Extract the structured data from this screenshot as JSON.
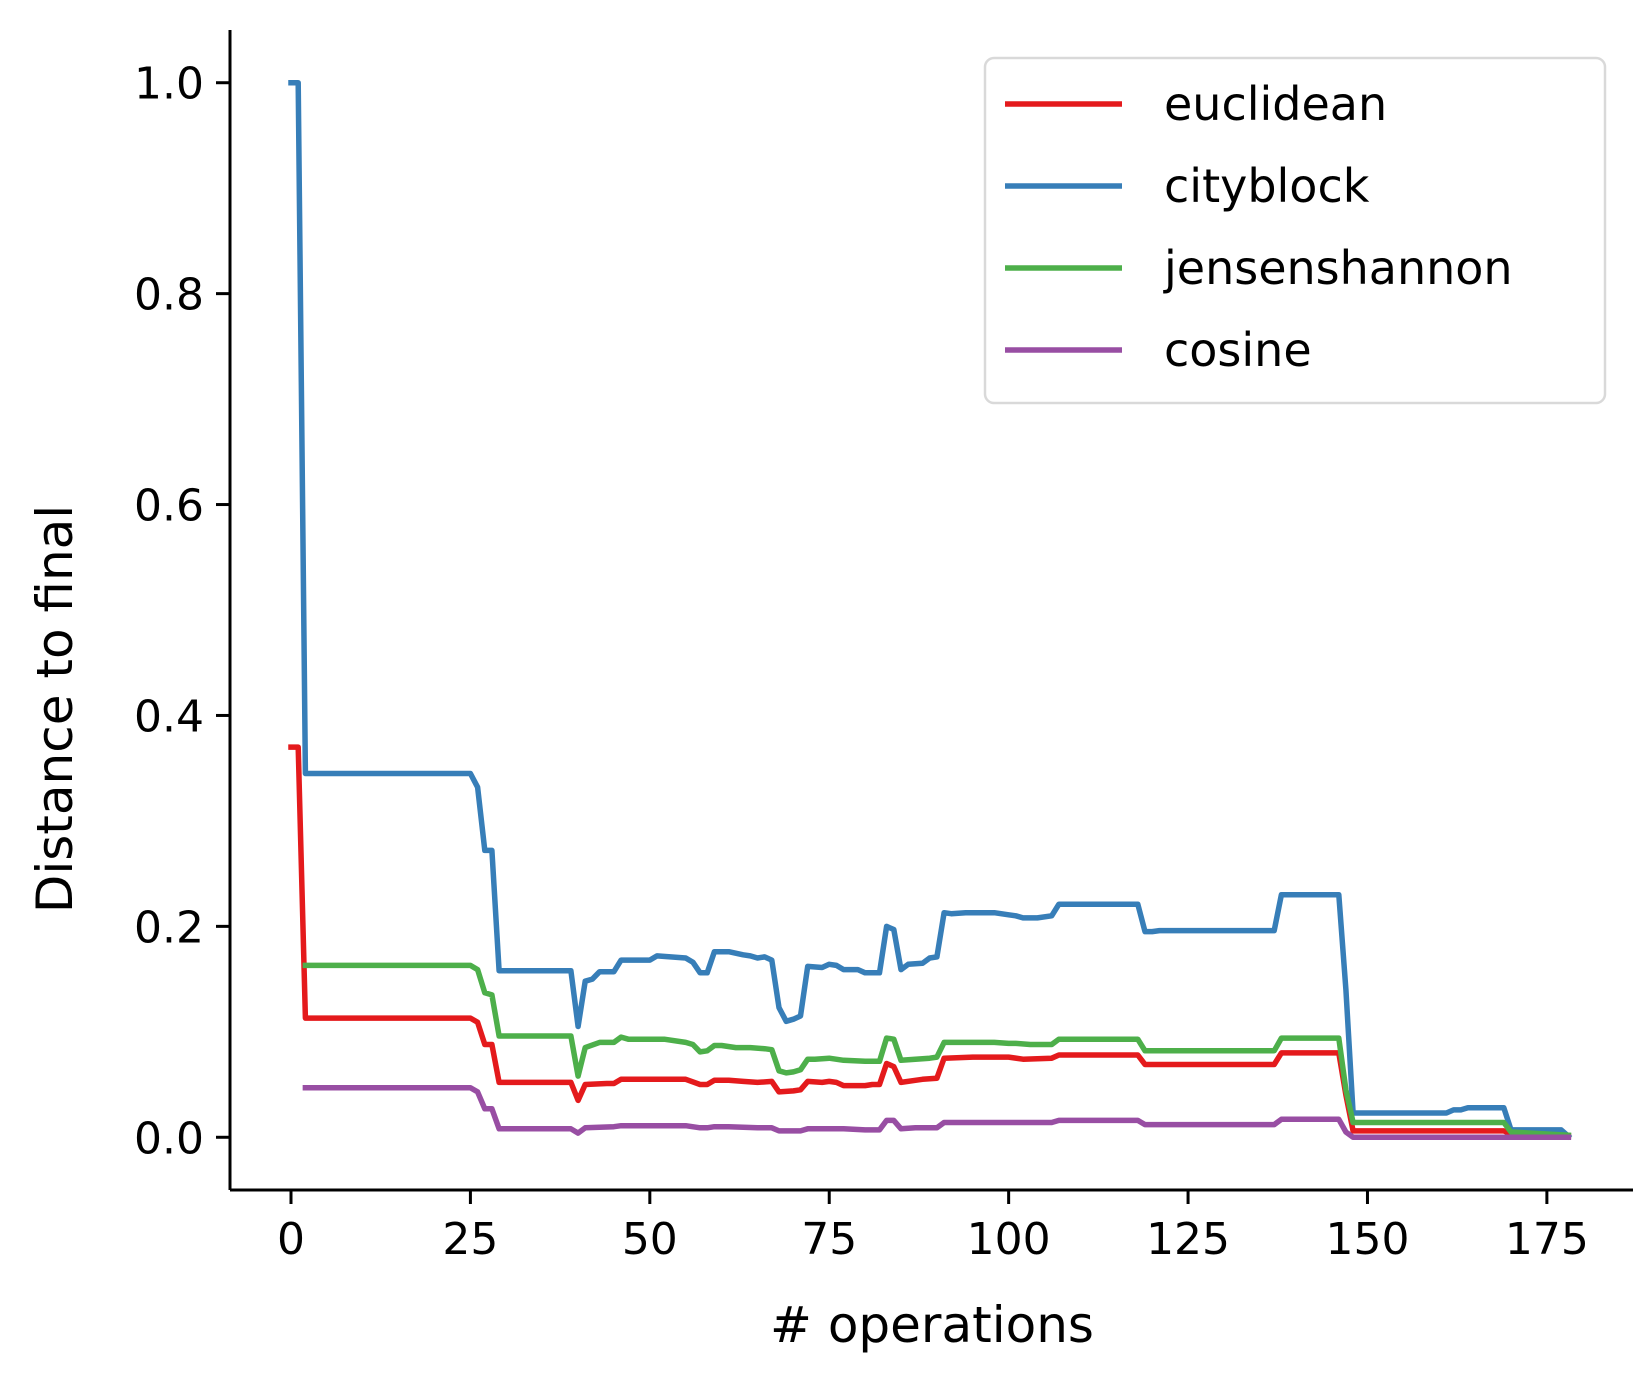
{
  "chart_data": {
    "type": "line",
    "title": "",
    "xlabel": "# operations",
    "ylabel": "Distance to final",
    "xlim": [
      -8.5,
      187
    ],
    "ylim": [
      -0.05,
      1.05
    ],
    "x_ticks": [
      0,
      25,
      50,
      75,
      100,
      125,
      150,
      175
    ],
    "x_tick_labels": [
      "0",
      "25",
      "50",
      "75",
      "100",
      "125",
      "150",
      "175"
    ],
    "y_ticks": [
      0.0,
      0.2,
      0.4,
      0.6,
      0.8,
      1.0
    ],
    "y_tick_labels": [
      "0.0",
      "0.2",
      "0.4",
      "0.6",
      "0.8",
      "1.0"
    ],
    "grid": false,
    "legend_position": "top-right",
    "series": [
      {
        "name": "euclidean",
        "color": "#e41a1c",
        "points": [
          [
            0,
            0.37
          ],
          [
            1,
            0.37
          ],
          [
            2,
            0.113
          ],
          [
            24,
            0.113
          ],
          [
            25,
            0.113
          ],
          [
            26,
            0.109
          ],
          [
            27,
            0.088
          ],
          [
            28,
            0.088
          ],
          [
            29,
            0.052
          ],
          [
            39,
            0.052
          ],
          [
            40,
            0.035
          ],
          [
            41,
            0.05
          ],
          [
            44,
            0.051
          ],
          [
            45,
            0.051
          ],
          [
            46,
            0.055
          ],
          [
            55,
            0.055
          ],
          [
            57,
            0.05
          ],
          [
            58,
            0.05
          ],
          [
            59,
            0.054
          ],
          [
            61,
            0.054
          ],
          [
            63,
            0.053
          ],
          [
            65,
            0.052
          ],
          [
            67,
            0.053
          ],
          [
            68,
            0.043
          ],
          [
            70,
            0.044
          ],
          [
            71,
            0.045
          ],
          [
            72,
            0.053
          ],
          [
            74,
            0.052
          ],
          [
            75,
            0.053
          ],
          [
            76,
            0.052
          ],
          [
            77,
            0.049
          ],
          [
            80,
            0.049
          ],
          [
            81,
            0.05
          ],
          [
            82,
            0.05
          ],
          [
            83,
            0.07
          ],
          [
            84,
            0.067
          ],
          [
            85,
            0.052
          ],
          [
            87,
            0.054
          ],
          [
            88,
            0.055
          ],
          [
            90,
            0.056
          ],
          [
            91,
            0.075
          ],
          [
            95,
            0.076
          ],
          [
            100,
            0.076
          ],
          [
            102,
            0.074
          ],
          [
            106,
            0.075
          ],
          [
            107,
            0.078
          ],
          [
            118,
            0.078
          ],
          [
            119,
            0.069
          ],
          [
            137,
            0.069
          ],
          [
            138,
            0.08
          ],
          [
            146,
            0.08
          ],
          [
            147,
            0.04
          ],
          [
            148,
            0.006
          ],
          [
            169,
            0.006
          ],
          [
            170,
            0.003
          ],
          [
            178,
            0.001
          ]
        ]
      },
      {
        "name": "cityblock",
        "color": "#377eb8",
        "points": [
          [
            0,
            1.0
          ],
          [
            1,
            1.0
          ],
          [
            2,
            0.345
          ],
          [
            24,
            0.345
          ],
          [
            25,
            0.345
          ],
          [
            26,
            0.332
          ],
          [
            27,
            0.272
          ],
          [
            28,
            0.272
          ],
          [
            29,
            0.158
          ],
          [
            39,
            0.158
          ],
          [
            40,
            0.105
          ],
          [
            41,
            0.148
          ],
          [
            42,
            0.15
          ],
          [
            43,
            0.157
          ],
          [
            45,
            0.157
          ],
          [
            46,
            0.168
          ],
          [
            50,
            0.168
          ],
          [
            51,
            0.172
          ],
          [
            55,
            0.17
          ],
          [
            56,
            0.166
          ],
          [
            57,
            0.156
          ],
          [
            58,
            0.156
          ],
          [
            59,
            0.176
          ],
          [
            61,
            0.176
          ],
          [
            63,
            0.173
          ],
          [
            64,
            0.172
          ],
          [
            65,
            0.17
          ],
          [
            66,
            0.171
          ],
          [
            67,
            0.168
          ],
          [
            68,
            0.123
          ],
          [
            69,
            0.11
          ],
          [
            70,
            0.112
          ],
          [
            71,
            0.115
          ],
          [
            72,
            0.162
          ],
          [
            74,
            0.161
          ],
          [
            75,
            0.164
          ],
          [
            76,
            0.163
          ],
          [
            77,
            0.159
          ],
          [
            79,
            0.159
          ],
          [
            80,
            0.156
          ],
          [
            82,
            0.156
          ],
          [
            83,
            0.2
          ],
          [
            84,
            0.197
          ],
          [
            85,
            0.159
          ],
          [
            86,
            0.164
          ],
          [
            88,
            0.165
          ],
          [
            89,
            0.17
          ],
          [
            90,
            0.171
          ],
          [
            91,
            0.213
          ],
          [
            92,
            0.212
          ],
          [
            94,
            0.213
          ],
          [
            98,
            0.213
          ],
          [
            100,
            0.211
          ],
          [
            101,
            0.21
          ],
          [
            102,
            0.208
          ],
          [
            104,
            0.208
          ],
          [
            106,
            0.21
          ],
          [
            107,
            0.221
          ],
          [
            118,
            0.221
          ],
          [
            119,
            0.195
          ],
          [
            120,
            0.195
          ],
          [
            121,
            0.196
          ],
          [
            137,
            0.196
          ],
          [
            138,
            0.23
          ],
          [
            146,
            0.23
          ],
          [
            147,
            0.14
          ],
          [
            148,
            0.023
          ],
          [
            161,
            0.023
          ],
          [
            162,
            0.026
          ],
          [
            163,
            0.026
          ],
          [
            164,
            0.028
          ],
          [
            168,
            0.028
          ],
          [
            169,
            0.028
          ],
          [
            170,
            0.007
          ],
          [
            177,
            0.007
          ],
          [
            178,
            0.001
          ]
        ]
      },
      {
        "name": "jensenshannon",
        "color": "#4daf4a",
        "points": [
          [
            2,
            0.163
          ],
          [
            24,
            0.163
          ],
          [
            25,
            0.163
          ],
          [
            26,
            0.159
          ],
          [
            27,
            0.137
          ],
          [
            28,
            0.135
          ],
          [
            29,
            0.096
          ],
          [
            39,
            0.096
          ],
          [
            40,
            0.058
          ],
          [
            41,
            0.085
          ],
          [
            43,
            0.09
          ],
          [
            45,
            0.09
          ],
          [
            46,
            0.095
          ],
          [
            47,
            0.093
          ],
          [
            52,
            0.093
          ],
          [
            55,
            0.09
          ],
          [
            56,
            0.088
          ],
          [
            57,
            0.081
          ],
          [
            58,
            0.082
          ],
          [
            59,
            0.087
          ],
          [
            60,
            0.087
          ],
          [
            62,
            0.085
          ],
          [
            64,
            0.085
          ],
          [
            66,
            0.084
          ],
          [
            67,
            0.083
          ],
          [
            68,
            0.063
          ],
          [
            69,
            0.061
          ],
          [
            70,
            0.062
          ],
          [
            71,
            0.064
          ],
          [
            72,
            0.074
          ],
          [
            73,
            0.074
          ],
          [
            75,
            0.075
          ],
          [
            77,
            0.073
          ],
          [
            80,
            0.072
          ],
          [
            82,
            0.072
          ],
          [
            83,
            0.094
          ],
          [
            84,
            0.093
          ],
          [
            85,
            0.073
          ],
          [
            87,
            0.074
          ],
          [
            89,
            0.075
          ],
          [
            90,
            0.076
          ],
          [
            91,
            0.09
          ],
          [
            98,
            0.09
          ],
          [
            100,
            0.089
          ],
          [
            101,
            0.089
          ],
          [
            103,
            0.088
          ],
          [
            106,
            0.088
          ],
          [
            107,
            0.093
          ],
          [
            118,
            0.093
          ],
          [
            119,
            0.082
          ],
          [
            137,
            0.082
          ],
          [
            138,
            0.094
          ],
          [
            146,
            0.094
          ],
          [
            147,
            0.045
          ],
          [
            148,
            0.014
          ],
          [
            169,
            0.014
          ],
          [
            170,
            0.005
          ],
          [
            178,
            0.002
          ]
        ]
      },
      {
        "name": "cosine",
        "color": "#984ea3",
        "points": [
          [
            2,
            0.047
          ],
          [
            24,
            0.047
          ],
          [
            25,
            0.047
          ],
          [
            26,
            0.043
          ],
          [
            27,
            0.027
          ],
          [
            28,
            0.027
          ],
          [
            29,
            0.008
          ],
          [
            39,
            0.008
          ],
          [
            40,
            0.004
          ],
          [
            41,
            0.009
          ],
          [
            45,
            0.01
          ],
          [
            46,
            0.011
          ],
          [
            55,
            0.011
          ],
          [
            57,
            0.009
          ],
          [
            58,
            0.009
          ],
          [
            59,
            0.01
          ],
          [
            61,
            0.01
          ],
          [
            65,
            0.009
          ],
          [
            67,
            0.009
          ],
          [
            68,
            0.006
          ],
          [
            71,
            0.006
          ],
          [
            72,
            0.008
          ],
          [
            77,
            0.008
          ],
          [
            80,
            0.007
          ],
          [
            82,
            0.007
          ],
          [
            83,
            0.016
          ],
          [
            84,
            0.016
          ],
          [
            85,
            0.008
          ],
          [
            87,
            0.009
          ],
          [
            90,
            0.009
          ],
          [
            91,
            0.014
          ],
          [
            100,
            0.014
          ],
          [
            102,
            0.014
          ],
          [
            106,
            0.014
          ],
          [
            107,
            0.016
          ],
          [
            118,
            0.016
          ],
          [
            119,
            0.012
          ],
          [
            137,
            0.012
          ],
          [
            138,
            0.017
          ],
          [
            146,
            0.017
          ],
          [
            147,
            0.005
          ],
          [
            148,
            0.0
          ],
          [
            178,
            0.0
          ]
        ]
      }
    ]
  }
}
